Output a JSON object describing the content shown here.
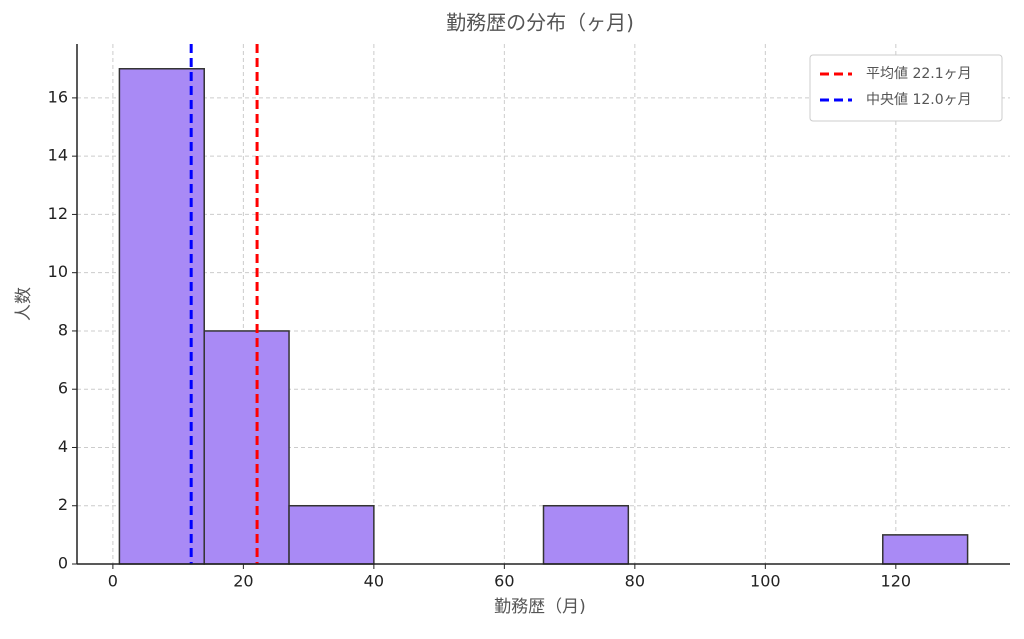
{
  "chart_data": {
    "type": "histogram",
    "title": "勤務歴の分布（ヶ月)",
    "xlabel": "勤務歴（月)",
    "ylabel": "人数",
    "bins": [
      1,
      14,
      27,
      40,
      53,
      66,
      79,
      92,
      105,
      118,
      131
    ],
    "values": [
      17,
      8,
      2,
      0,
      0,
      2,
      0,
      0,
      0,
      1
    ],
    "color": "#a98af5",
    "edgecolor": "#333333",
    "xlim": [
      -5.5,
      137.5
    ],
    "ylim": [
      0,
      17.85
    ],
    "xticks": [
      0,
      20,
      40,
      60,
      80,
      100,
      120
    ],
    "yticks": [
      0,
      2,
      4,
      6,
      8,
      10,
      12,
      14,
      16
    ],
    "grid": true,
    "legend": "upper right",
    "vlines": [
      {
        "name": "平均値 22.1ヶ月",
        "value": 22.1,
        "color": "#ff0000"
      },
      {
        "name": "中央値 12.0ヶ月",
        "value": 12.0,
        "color": "#0000ff"
      }
    ]
  }
}
